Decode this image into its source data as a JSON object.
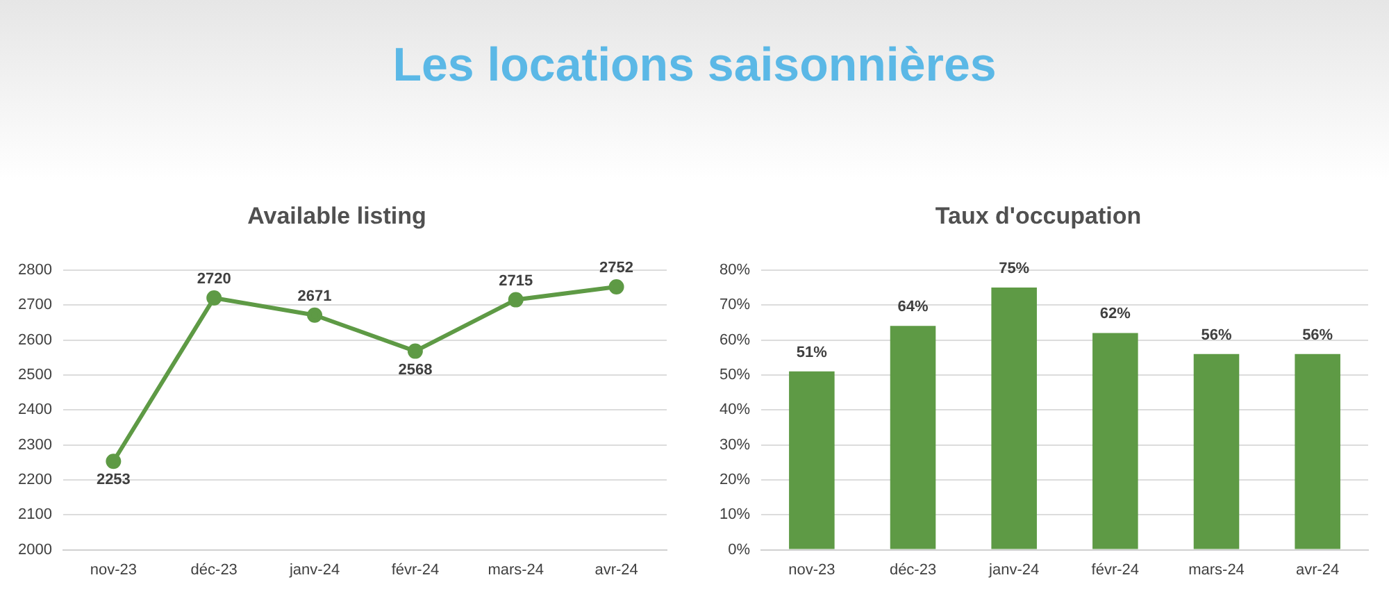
{
  "chart_data": [
    {
      "type": "other",
      "title": "Les locations saisonnières"
    },
    {
      "type": "line",
      "title": "Available listing",
      "categories": [
        "nov-23",
        "déc-23",
        "janv-24",
        "févr-24",
        "mars-24",
        "avr-24"
      ],
      "values": [
        2253,
        2720,
        2671,
        2568,
        2715,
        2752
      ],
      "color": "#5e9a45",
      "ylim": [
        2000,
        2800
      ],
      "yticks": [
        2000,
        2100,
        2200,
        2300,
        2400,
        2500,
        2600,
        2700,
        2800
      ],
      "grid": "y",
      "data_labels": true,
      "marker": "circle",
      "line_style": "solid",
      "legend": false
    },
    {
      "type": "bar",
      "title": "Taux d'occupation",
      "categories": [
        "nov-23",
        "déc-23",
        "janv-24",
        "févr-24",
        "mars-24",
        "avr-24"
      ],
      "values": [
        51,
        64,
        75,
        62,
        56,
        56
      ],
      "value_labels": [
        "51%",
        "64%",
        "75%",
        "62%",
        "56%",
        "56%"
      ],
      "color": "#5e9a45",
      "ylim": [
        0,
        80
      ],
      "yticks": [
        {
          "value": 0,
          "label": "0%"
        },
        {
          "value": 10,
          "label": "10%"
        },
        {
          "value": 20,
          "label": "20%"
        },
        {
          "value": 30,
          "label": "30%"
        },
        {
          "value": 40,
          "label": "40%"
        },
        {
          "value": 50,
          "label": "50%"
        },
        {
          "value": 60,
          "label": "60%"
        },
        {
          "value": 70,
          "label": "70%"
        },
        {
          "value": 80,
          "label": "80%"
        }
      ],
      "grid": "y",
      "legend": false
    }
  ]
}
